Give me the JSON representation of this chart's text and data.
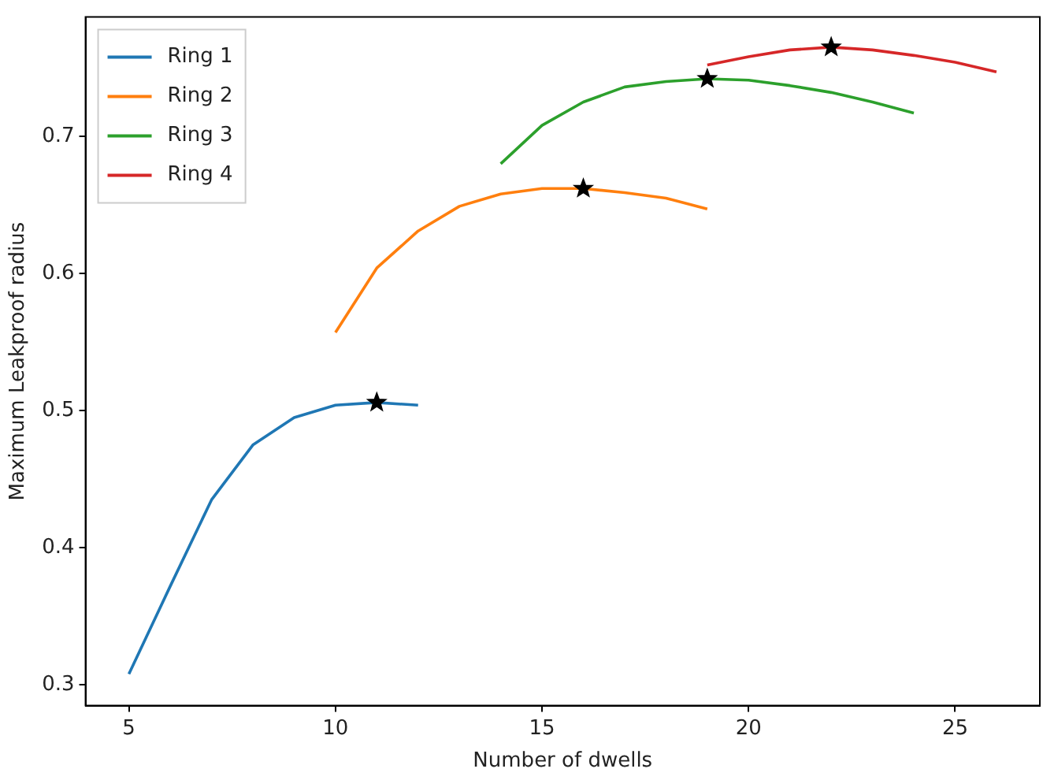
{
  "chart_data": {
    "type": "line",
    "xlabel": "Number of dwells",
    "ylabel": "Maximum Leakproof radius",
    "xlim": [
      3.95,
      27.05
    ],
    "xticks": [
      5,
      10,
      15,
      20,
      25
    ],
    "ylim": [
      0.285,
      0.787
    ],
    "yticks": [
      0.3,
      0.4,
      0.5,
      0.6,
      0.7
    ],
    "grid": false,
    "legend": "top left",
    "marker": "none",
    "line_style": "solid",
    "series": [
      {
        "name": "Ring 1",
        "color": "#1f77b4",
        "x": [
          5,
          6,
          7,
          8,
          9,
          10,
          11,
          12
        ],
        "values": [
          0.308,
          0.372,
          0.435,
          0.475,
          0.495,
          0.504,
          0.506,
          0.504
        ]
      },
      {
        "name": "Ring 2",
        "color": "#ff7f0e",
        "x": [
          10,
          11,
          12,
          13,
          14,
          15,
          16,
          17,
          18,
          19
        ],
        "values": [
          0.557,
          0.604,
          0.631,
          0.649,
          0.658,
          0.662,
          0.662,
          0.659,
          0.655,
          0.647
        ]
      },
      {
        "name": "Ring 3",
        "color": "#2ca02c",
        "x": [
          14,
          15,
          16,
          17,
          18,
          19,
          20,
          21,
          22,
          23,
          24
        ],
        "values": [
          0.68,
          0.708,
          0.725,
          0.736,
          0.74,
          0.742,
          0.741,
          0.737,
          0.732,
          0.725,
          0.717
        ]
      },
      {
        "name": "Ring 4",
        "color": "#d62728",
        "x": [
          19,
          20,
          21,
          22,
          23,
          24,
          25,
          26
        ],
        "values": [
          0.752,
          0.758,
          0.763,
          0.765,
          0.763,
          0.759,
          0.754,
          0.747
        ]
      },
      {
        "type": "scatter",
        "color": "#000000",
        "marker": "star",
        "x": [
          11,
          16,
          19,
          22
        ],
        "values": [
          0.506,
          0.662,
          0.742,
          0.765
        ]
      }
    ]
  }
}
